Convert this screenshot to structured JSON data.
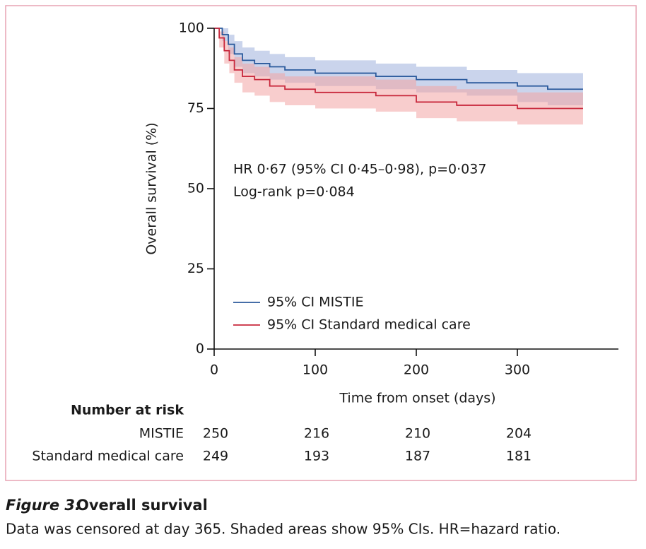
{
  "chart_data": {
    "type": "km",
    "xlabel": "Time from onset (days)",
    "ylabel": "Overall survival (%)",
    "xlim": [
      0,
      400
    ],
    "ylim": [
      0,
      100
    ],
    "xticks": [
      0,
      100,
      200,
      300
    ],
    "yticks": [
      0,
      25,
      50,
      75,
      100
    ],
    "annotations": [
      "HR 0·67 (95% CI 0·45–0·98), p=0·037",
      "Log-rank p=0·084"
    ],
    "series": [
      {
        "name": "95% CI MISTIE",
        "color": "#2b5a9c",
        "band_color": "#9fb0dc",
        "x": [
          0,
          8,
          8,
          14,
          14,
          20,
          20,
          28,
          28,
          40,
          40,
          55,
          55,
          70,
          70,
          100,
          100,
          160,
          160,
          200,
          200,
          250,
          250,
          300,
          300,
          330,
          330,
          365
        ],
        "values": [
          100,
          100,
          98,
          98,
          95,
          95,
          92,
          92,
          90,
          90,
          89,
          89,
          88,
          88,
          87,
          87,
          86,
          86,
          85,
          85,
          84,
          84,
          83,
          83,
          82,
          82,
          81,
          81
        ],
        "upper": [
          100,
          100,
          100,
          100,
          98,
          98,
          96,
          96,
          94,
          94,
          93,
          93,
          92,
          92,
          91,
          91,
          90,
          90,
          89,
          89,
          88,
          88,
          87,
          87,
          86,
          86,
          86,
          86
        ],
        "lower": [
          100,
          100,
          96,
          96,
          92,
          92,
          88,
          88,
          86,
          86,
          85,
          85,
          84,
          84,
          83,
          83,
          82,
          82,
          81,
          81,
          80,
          80,
          79,
          79,
          77,
          77,
          76,
          76
        ]
      },
      {
        "name": "95% CI Standard medical care",
        "color": "#c8283c",
        "band_color": "#f2a4a4",
        "x": [
          0,
          5,
          5,
          10,
          10,
          15,
          15,
          20,
          20,
          28,
          28,
          40,
          40,
          55,
          55,
          70,
          70,
          100,
          100,
          160,
          160,
          200,
          200,
          240,
          240,
          300,
          300,
          365
        ],
        "values": [
          100,
          100,
          97,
          97,
          93,
          93,
          90,
          90,
          87,
          87,
          85,
          85,
          84,
          84,
          82,
          82,
          81,
          81,
          80,
          80,
          79,
          79,
          77,
          77,
          76,
          76,
          75,
          75
        ],
        "upper": [
          100,
          100,
          99,
          99,
          96,
          96,
          94,
          94,
          91,
          91,
          89,
          89,
          88,
          88,
          86,
          86,
          85,
          85,
          85,
          85,
          84,
          84,
          82,
          82,
          81,
          81,
          80,
          80
        ],
        "lower": [
          100,
          100,
          94,
          94,
          89,
          89,
          86,
          86,
          83,
          83,
          80,
          80,
          79,
          79,
          77,
          77,
          76,
          76,
          75,
          75,
          74,
          74,
          72,
          72,
          71,
          71,
          70,
          70
        ]
      }
    ],
    "risk_table": {
      "title": "Number at risk",
      "rows": [
        {
          "label": "MISTIE",
          "counts": [
            "250",
            "216",
            "210",
            "204"
          ]
        },
        {
          "label": "Standard medical care",
          "counts": [
            "249",
            "193",
            "187",
            "181"
          ]
        }
      ]
    }
  },
  "caption": {
    "label": "Figure 3:",
    "title": "Overall survival",
    "text": "Data was censored at day 365. Shaded areas show 95% CIs. HR=hazard ratio."
  }
}
